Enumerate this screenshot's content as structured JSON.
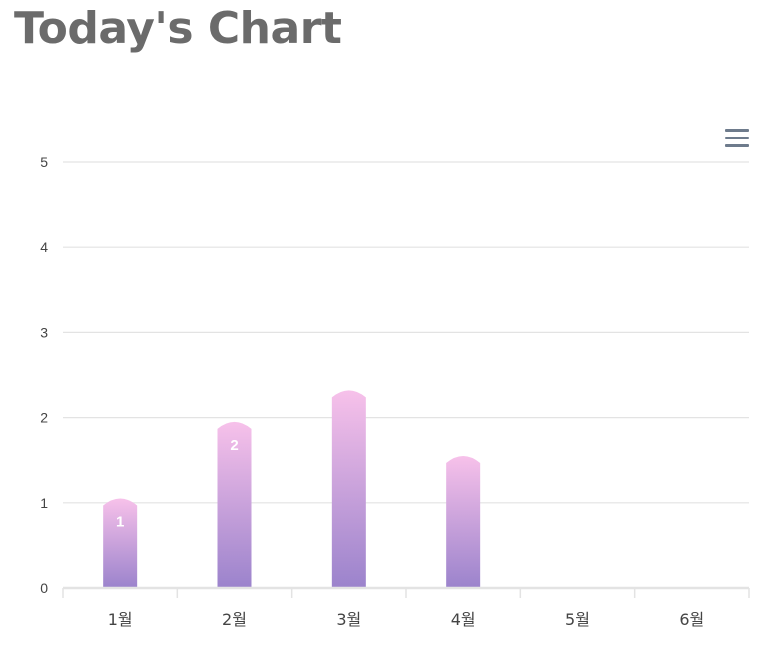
{
  "title": "Today's Chart",
  "menu_icon": "hamburger-menu-icon",
  "colors": {
    "title": "#6b6b6b",
    "grid": "#e3e3e3",
    "bar_top": "#f7c1ea",
    "bar_bottom": "#9b83cc",
    "data_label": "#ffffff",
    "tick_label": "#444444"
  },
  "chart_data": {
    "type": "bar",
    "categories": [
      "1월",
      "2월",
      "3월",
      "4월",
      "5월",
      "6월"
    ],
    "values": [
      1.05,
      1.95,
      2.32,
      1.55,
      0,
      0
    ],
    "data_labels": [
      "1",
      "2",
      "",
      "",
      "",
      ""
    ],
    "ylim": [
      0,
      5
    ],
    "yticks": [
      "0",
      "1",
      "2",
      "3",
      "4",
      "5"
    ],
    "xlabel": "",
    "ylabel": "",
    "grid": true,
    "legend": "none"
  }
}
